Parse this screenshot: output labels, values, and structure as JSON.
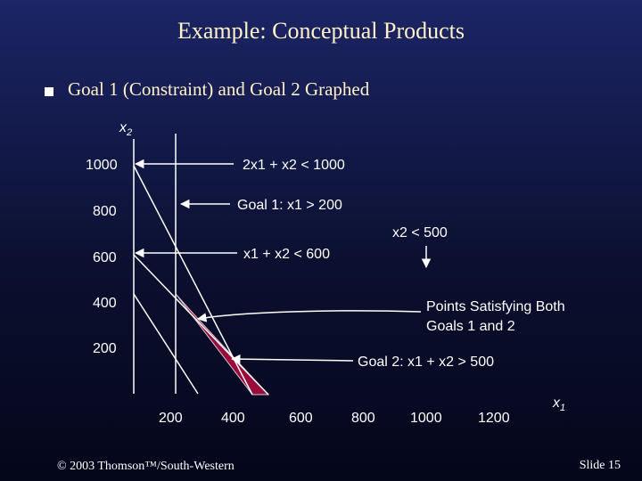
{
  "slide": {
    "title": "Example:  Conceptual Products",
    "bullet": "Goal 1 (Constraint) and Goal 2 Graphed",
    "footer_left": "© 2003 Thomson™/South-Western",
    "footer_right": "Slide  15"
  },
  "axes": {
    "x_label": "x",
    "x_sub": "1",
    "y_label": "x",
    "y_sub": "2",
    "y_ticks": [
      "1000",
      "800",
      "600",
      "400",
      "200"
    ],
    "x_ticks": [
      "200",
      "400",
      "600",
      "800",
      "1000",
      "1200"
    ]
  },
  "annotations": {
    "c1": "2x1 + x2  <  1000",
    "goal1": "Goal 1:  x1  >  200",
    "c3": "x1 + x2  <  600",
    "c2": "x2  <  500",
    "points_line1": "Points Satisfying Both",
    "points_line2": "Goals 1 and 2",
    "goal2": "Goal 2:  x1 + x2  >  500"
  },
  "colors": {
    "region": "#9a0a3a",
    "region_edge": "#d8c6d0",
    "lines": "#ffffff",
    "title": "#fff2c8"
  }
}
